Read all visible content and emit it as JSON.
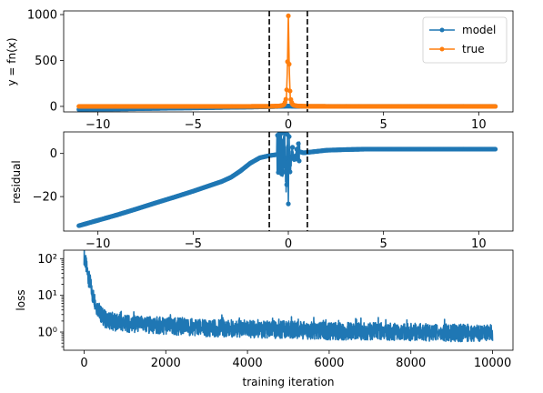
{
  "chart_data": [
    {
      "type": "line",
      "ylabel": "y = fn(x)",
      "xlim": [
        -11.8,
        11.8
      ],
      "ylim": [
        -60,
        1040
      ],
      "xticks": [
        -10,
        -5,
        0,
        5,
        10
      ],
      "xtick_labels": [
        "−10",
        "−5",
        "0",
        "5",
        "10"
      ],
      "yticks": [
        0,
        500,
        1000
      ],
      "ytick_labels": [
        "0",
        "500",
        "1000"
      ],
      "vlines": [
        -1,
        1
      ],
      "legend": {
        "position": "top-right",
        "entries": [
          "model",
          "true"
        ]
      },
      "series": [
        {
          "name": "model",
          "color": "#1f77b4",
          "x": [
            -11,
            -10,
            -9,
            -8,
            -7,
            -6,
            -5,
            -4,
            -3,
            -2,
            -1.5,
            -1,
            -0.5,
            -0.2,
            0,
            0.2,
            0.5,
            1,
            2,
            4,
            6,
            8,
            10,
            10.9
          ],
          "y": [
            -34,
            -31,
            -28,
            -25,
            -22,
            -19,
            -16,
            -13,
            -10,
            -7,
            -5,
            -3,
            0,
            2,
            3,
            2,
            0,
            0,
            0,
            0,
            0,
            0,
            0,
            0
          ]
        },
        {
          "name": "true",
          "color": "#ff7f0e",
          "x": [
            -11,
            -8,
            -5,
            -3,
            -2,
            -1,
            -0.5,
            -0.3,
            -0.2,
            -0.1,
            -0.05,
            0,
            0.05,
            0.1,
            0.2,
            0.3,
            0.5,
            1,
            2,
            3,
            5,
            8,
            10.9
          ],
          "y": [
            0.01,
            0.02,
            0.04,
            0.11,
            0.25,
            1,
            4,
            11,
            25,
            100,
            400,
            1000,
            400,
            100,
            25,
            11,
            4,
            1,
            0.25,
            0.11,
            0.04,
            0.02,
            0.01
          ]
        }
      ]
    },
    {
      "type": "line",
      "ylabel": "residual",
      "xlim": [
        -11.8,
        11.8
      ],
      "ylim": [
        -36,
        10
      ],
      "xticks": [
        -10,
        -5,
        0,
        5,
        10
      ],
      "xtick_labels": [
        "−10",
        "−5",
        "0",
        "5",
        "10"
      ],
      "yticks": [
        0,
        -20
      ],
      "ytick_labels": [
        "0",
        "−20"
      ],
      "vlines": [
        -1,
        1
      ],
      "series": [
        {
          "color": "#1f77b4",
          "x": [
            -11,
            -10,
            -9,
            -8,
            -7,
            -6,
            -5,
            -4,
            -3.5,
            -3,
            -2.5,
            -2,
            -1.5,
            -1,
            -0.6,
            -0.4,
            -0.3,
            -0.2,
            -0.1,
            -0.05,
            0,
            0.05,
            0.1,
            0.2,
            0.3,
            0.5,
            0.8,
            1,
            1.5,
            2,
            3,
            4,
            5,
            6,
            8,
            10,
            10.9
          ],
          "y": [
            -33.5,
            -31,
            -28.5,
            -25.8,
            -23,
            -20.3,
            -17.5,
            -14.5,
            -13,
            -11,
            -8,
            -4.5,
            -2,
            -1,
            -0.5,
            0.8,
            -3,
            3,
            -14,
            7,
            -19,
            6,
            -8,
            2.5,
            -3,
            1,
            0.3,
            0.5,
            1,
            1.5,
            1.8,
            2,
            2,
            2,
            2,
            2,
            2
          ]
        }
      ]
    },
    {
      "type": "line",
      "xlabel": "training iteration",
      "ylabel": "loss",
      "yscale": "log",
      "xlim": [
        -500,
        10500
      ],
      "ylim": [
        0.32,
        170
      ],
      "xticks": [
        0,
        2000,
        4000,
        6000,
        8000,
        10000
      ],
      "xtick_labels": [
        "0",
        "2000",
        "4000",
        "6000",
        "8000",
        "10000"
      ],
      "yticks": [
        1,
        10,
        100
      ],
      "ytick_labels": [
        "10⁰",
        "10¹",
        "10²"
      ],
      "series": [
        {
          "color": "#1f77b4",
          "x": [
            0,
            50,
            100,
            200,
            300,
            400,
            500,
            700,
            1000,
            1500,
            2000,
            2500,
            3000,
            3500,
            4000,
            4500,
            5000,
            6000,
            7000,
            8000,
            9000,
            10000
          ],
          "y": [
            110,
            60,
            30,
            10,
            5,
            3,
            2.2,
            1.8,
            1.6,
            1.5,
            1.4,
            1.3,
            1.2,
            1.2,
            1.15,
            1.1,
            1.1,
            1.0,
            1.0,
            0.95,
            0.9,
            0.9
          ]
        }
      ]
    }
  ]
}
